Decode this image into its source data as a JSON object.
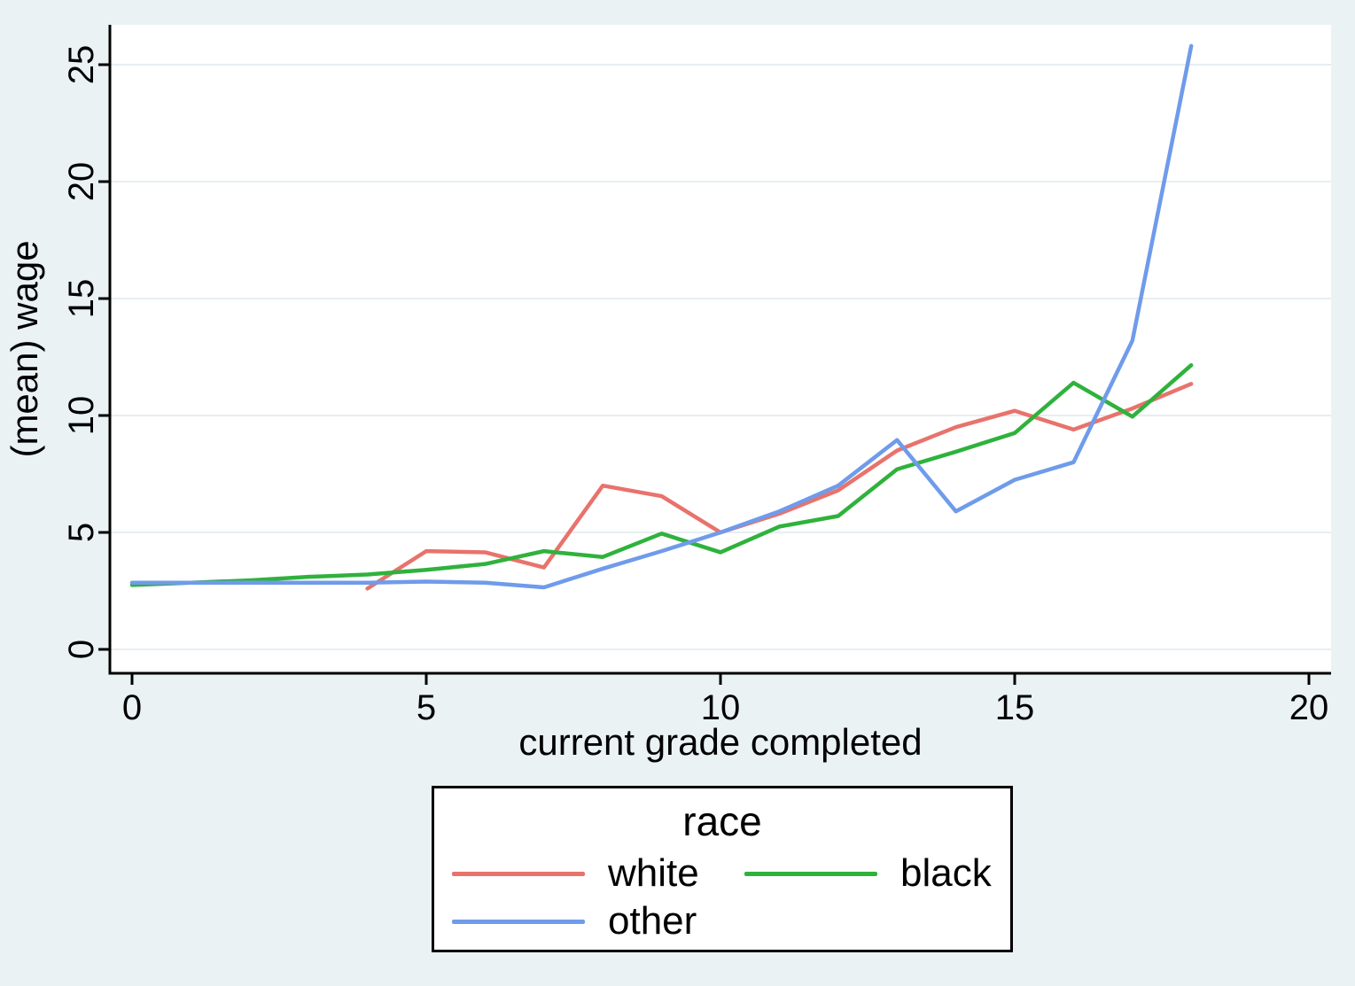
{
  "chart": {
    "background_color": "#eaf2f3",
    "plot_background": "#ffffff",
    "grid_color": "#e6eef1",
    "axis_color": "#000000",
    "x_ticks": [
      0,
      5,
      10,
      15,
      20
    ],
    "y_ticks": [
      0,
      5,
      10,
      15,
      20,
      25
    ],
    "xlabel": "current grade completed",
    "ylabel": "(mean) wage",
    "legend": {
      "title": "race"
    }
  },
  "chart_data": {
    "type": "line",
    "title": "",
    "xlabel": "current grade completed",
    "ylabel": "(mean) wage",
    "xlim": [
      0,
      20
    ],
    "ylim": [
      0,
      25
    ],
    "grid": "horizontal",
    "legend_position": "below",
    "legend_title": "race",
    "series": [
      {
        "name": "white",
        "color": "#e8736c",
        "x": [
          4,
          5,
          6,
          7,
          8,
          9,
          10,
          11,
          12,
          13,
          14,
          15,
          16,
          17,
          18
        ],
        "y": [
          2.6,
          4.2,
          4.15,
          3.5,
          7.0,
          6.55,
          5.0,
          5.8,
          6.8,
          8.5,
          9.5,
          10.2,
          9.4,
          10.3,
          11.35
        ]
      },
      {
        "name": "black",
        "color": "#2fb23c",
        "x": [
          0,
          1,
          2,
          3,
          4,
          5,
          6,
          7,
          8,
          9,
          10,
          11,
          12,
          13,
          14,
          15,
          16,
          17,
          18
        ],
        "y": [
          2.75,
          2.85,
          2.95,
          3.1,
          3.2,
          3.4,
          3.65,
          4.2,
          3.95,
          4.95,
          4.15,
          5.25,
          5.7,
          7.7,
          8.45,
          9.25,
          11.4,
          9.95,
          12.15
        ]
      },
      {
        "name": "other",
        "color": "#6f9bea",
        "x": [
          0,
          1,
          2,
          3,
          4,
          5,
          6,
          7,
          8,
          9,
          10,
          11,
          12,
          13,
          14,
          15,
          16,
          17,
          18
        ],
        "y": [
          2.85,
          2.85,
          2.85,
          2.85,
          2.85,
          2.9,
          2.85,
          2.65,
          3.45,
          4.2,
          5.0,
          5.9,
          7.0,
          8.95,
          5.9,
          7.25,
          8.0,
          13.2,
          25.8
        ]
      }
    ]
  }
}
